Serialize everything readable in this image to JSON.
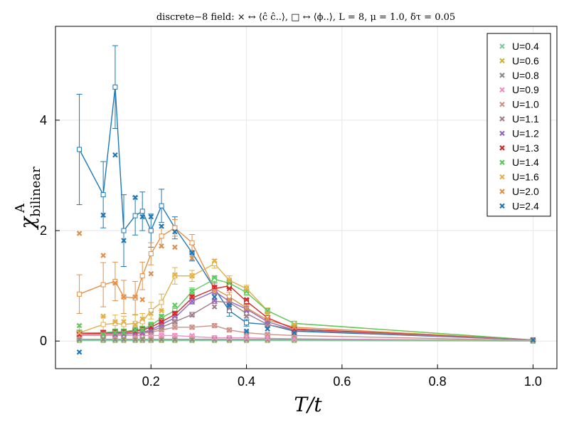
{
  "chart_data": {
    "type": "line",
    "title": "discrete−8  field:   × ↔ ⟨ĉ ĉ..⟩,      □ ↔ ⟨ϕ..⟩,   L = 8,   μ = 1.0,   δτ = 0.05",
    "xlabel": "T/t",
    "ylabel": "χ",
    "ylabel_sub": "bilinear",
    "ylabel_sup": "A",
    "xlim": [
      0.0,
      1.05
    ],
    "ylim": [
      -0.5,
      5.7
    ],
    "xticks": [
      0.2,
      0.4,
      0.6,
      0.8,
      1.0
    ],
    "xtick_labels": [
      "0.2",
      "0.4",
      "0.6",
      "0.8",
      "1.0"
    ],
    "yticks": [
      0,
      2,
      4
    ],
    "ytick_labels": [
      "0",
      "2",
      "4"
    ],
    "grid": true,
    "legend_position": "top-right",
    "series": [
      {
        "name": "U=0.4",
        "color": "#7fc9a0",
        "x": [
          0.05,
          0.1,
          0.125,
          0.143,
          0.167,
          0.182,
          0.2,
          0.222,
          0.25,
          0.286,
          0.333,
          0.364,
          0.4,
          0.444,
          0.5,
          1.0
        ],
        "y": [
          0.01,
          0.01,
          0.01,
          0.01,
          0.01,
          0.01,
          0.01,
          0.01,
          0.01,
          0.01,
          0.01,
          0.01,
          0.01,
          0.01,
          0.01,
          0.0
        ]
      },
      {
        "name": "U=0.6",
        "color": "#c9b53c",
        "x": [
          0.05,
          0.1,
          0.125,
          0.143,
          0.167,
          0.182,
          0.2,
          0.222,
          0.25,
          0.286,
          0.333,
          0.364,
          0.4,
          0.444,
          0.5,
          1.0
        ],
        "y": [
          0.02,
          0.02,
          0.02,
          0.02,
          0.02,
          0.02,
          0.02,
          0.02,
          0.02,
          0.02,
          0.02,
          0.02,
          0.02,
          0.02,
          0.02,
          0.0
        ]
      },
      {
        "name": "U=0.8",
        "color": "#8c8c8c",
        "x": [
          0.05,
          0.1,
          0.125,
          0.143,
          0.167,
          0.182,
          0.2,
          0.222,
          0.25,
          0.286,
          0.333,
          0.364,
          0.4,
          0.444,
          0.5,
          1.0
        ],
        "y": [
          0.03,
          0.03,
          0.03,
          0.03,
          0.03,
          0.03,
          0.03,
          0.03,
          0.03,
          0.03,
          0.03,
          0.03,
          0.03,
          0.03,
          0.03,
          0.0
        ]
      },
      {
        "name": "U=0.9",
        "color": "#f08fc4",
        "x": [
          0.05,
          0.1,
          0.125,
          0.143,
          0.167,
          0.182,
          0.2,
          0.222,
          0.25,
          0.286,
          0.333,
          0.364,
          0.4,
          0.444,
          0.5,
          1.0
        ],
        "y": [
          0.1,
          0.12,
          0.1,
          0.12,
          0.1,
          0.12,
          0.1,
          0.1,
          0.1,
          0.1,
          0.06,
          0.06,
          0.06,
          0.05,
          0.04,
          0.01
        ]
      },
      {
        "name": "U=1.0",
        "color": "#c9918a",
        "x": [
          0.05,
          0.1,
          0.125,
          0.143,
          0.167,
          0.182,
          0.2,
          0.222,
          0.25,
          0.286,
          0.333,
          0.364,
          0.4,
          0.444,
          0.5,
          1.0
        ],
        "y": [
          0.12,
          0.12,
          0.12,
          0.12,
          0.13,
          0.13,
          0.15,
          0.2,
          0.25,
          0.25,
          0.28,
          0.2,
          0.15,
          0.12,
          0.1,
          0.01
        ]
      },
      {
        "name": "U=1.1",
        "color": "#a07e8c",
        "x": [
          0.05,
          0.1,
          0.125,
          0.143,
          0.167,
          0.182,
          0.2,
          0.222,
          0.25,
          0.286,
          0.333,
          0.364,
          0.4,
          0.444,
          0.5,
          1.0
        ],
        "y": [
          0.12,
          0.12,
          0.12,
          0.12,
          0.14,
          0.15,
          0.18,
          0.25,
          0.35,
          0.47,
          0.62,
          0.6,
          0.45,
          0.3,
          0.2,
          0.02
        ]
      },
      {
        "name": "U=1.2",
        "color": "#9467bd",
        "x": [
          0.05,
          0.1,
          0.125,
          0.143,
          0.167,
          0.182,
          0.2,
          0.222,
          0.25,
          0.286,
          0.333,
          0.364,
          0.4,
          0.444,
          0.5,
          1.0
        ],
        "y": [
          0.12,
          0.12,
          0.12,
          0.13,
          0.15,
          0.15,
          0.2,
          0.3,
          0.45,
          0.72,
          0.73,
          0.7,
          0.55,
          0.35,
          0.2,
          0.02
        ]
      },
      {
        "name": "U=1.3",
        "color": "#d62728",
        "x": [
          0.05,
          0.1,
          0.125,
          0.143,
          0.167,
          0.182,
          0.2,
          0.222,
          0.25,
          0.286,
          0.333,
          0.364,
          0.4,
          0.444,
          0.5,
          1.0
        ],
        "y": [
          0.12,
          0.13,
          0.15,
          0.15,
          0.18,
          0.2,
          0.25,
          0.35,
          0.5,
          0.8,
          0.97,
          0.95,
          0.75,
          0.4,
          0.22,
          0.02
        ]
      },
      {
        "name": "U=1.4",
        "color": "#5cc95c",
        "x": [
          0.05,
          0.1,
          0.125,
          0.143,
          0.167,
          0.182,
          0.2,
          0.222,
          0.25,
          0.286,
          0.333,
          0.364,
          0.4,
          0.444,
          0.5,
          1.0
        ],
        "y": [
          0.28,
          0.12,
          0.15,
          0.15,
          0.2,
          0.2,
          0.3,
          0.45,
          0.65,
          0.9,
          1.15,
          1.05,
          0.9,
          0.55,
          0.3,
          0.02
        ]
      },
      {
        "name": "U=1.6",
        "color": "#e0b04a",
        "x": [
          0.05,
          0.1,
          0.125,
          0.143,
          0.167,
          0.182,
          0.2,
          0.222,
          0.25,
          0.286,
          0.333,
          0.364,
          0.4,
          0.444,
          0.5,
          1.0
        ],
        "y": [
          0.15,
          0.45,
          0.35,
          0.35,
          0.3,
          0.4,
          0.5,
          0.55,
          1.2,
          1.18,
          1.45,
          1.1,
          0.95,
          0.5,
          0.3,
          0.02
        ]
      },
      {
        "name": "U=2.0",
        "color": "#e0904a",
        "x": [
          0.05,
          0.1,
          0.125,
          0.143,
          0.167,
          0.182,
          0.2,
          0.222,
          0.25,
          0.286,
          0.333,
          0.364,
          0.4,
          0.444,
          0.5,
          1.0
        ],
        "y": [
          1.95,
          1.55,
          1.05,
          0.8,
          0.8,
          0.75,
          1.22,
          1.72,
          1.7,
          1.5,
          0.9,
          0.75,
          0.6,
          0.4,
          0.25,
          0.02
        ]
      },
      {
        "name": "U=2.4",
        "color": "#1f77b4",
        "x": [
          0.05,
          0.1,
          0.125,
          0.143,
          0.167,
          0.182,
          0.2,
          0.222,
          0.25,
          0.286,
          0.333,
          0.364,
          0.4,
          0.444,
          0.5,
          1.0
        ],
        "y": [
          -0.2,
          2.28,
          3.37,
          1.82,
          2.6,
          2.25,
          2.25,
          2.08,
          1.98,
          1.6,
          0.8,
          0.65,
          0.18,
          0.22,
          0.15,
          0.02
        ]
      }
    ],
    "field_lines": [
      {
        "name": "U=2.4",
        "color": "#1f77b4",
        "x": [
          0.05,
          0.1,
          0.125,
          0.143,
          0.167,
          0.182,
          0.2,
          0.222,
          0.25,
          0.286,
          0.333,
          0.364,
          0.4,
          0.444,
          0.5,
          1.0
        ],
        "y": [
          3.47,
          2.65,
          4.6,
          2.0,
          2.27,
          2.35,
          2.0,
          2.45,
          2.05,
          1.6,
          0.95,
          0.55,
          0.33,
          0.3,
          0.18,
          0.02
        ],
        "err": [
          1.0,
          0.6,
          0.75,
          0.65,
          0.35,
          0.35,
          0.3,
          0.3,
          0.2,
          0.15,
          0.1,
          0.1,
          0.06,
          0.05,
          0.03,
          0.01
        ]
      },
      {
        "name": "U=2.0",
        "color": "#e0904a",
        "x": [
          0.05,
          0.1,
          0.125,
          0.143,
          0.167,
          0.182,
          0.2,
          0.222,
          0.25,
          0.286,
          0.333,
          0.364,
          0.4,
          0.444,
          0.5,
          1.0
        ],
        "y": [
          0.85,
          1.02,
          1.08,
          0.8,
          0.78,
          1.18,
          1.58,
          1.9,
          2.05,
          1.78,
          0.95,
          0.8,
          0.6,
          0.38,
          0.25,
          0.02
        ],
        "err": [
          0.35,
          0.4,
          0.35,
          0.3,
          0.3,
          0.25,
          0.2,
          0.2,
          0.15,
          0.15,
          0.1,
          0.08,
          0.06,
          0.05,
          0.03,
          0.01
        ]
      },
      {
        "name": "U=1.6",
        "color": "#e0b04a",
        "x": [
          0.05,
          0.1,
          0.125,
          0.143,
          0.167,
          0.182,
          0.2,
          0.222,
          0.25,
          0.286,
          0.333,
          0.364,
          0.4,
          0.444,
          0.5,
          1.0
        ],
        "y": [
          0.15,
          0.3,
          0.32,
          0.3,
          0.32,
          0.35,
          0.55,
          0.7,
          1.18,
          1.18,
          1.4,
          1.1,
          0.95,
          0.55,
          0.32,
          0.02
        ],
        "err": [
          0.15,
          0.15,
          0.15,
          0.15,
          0.15,
          0.15,
          0.15,
          0.15,
          0.15,
          0.1,
          0.08,
          0.08,
          0.06,
          0.05,
          0.03,
          0.01
        ]
      },
      {
        "name": "U=1.4",
        "color": "#5cc95c",
        "x": [
          0.05,
          0.1,
          0.125,
          0.143,
          0.167,
          0.182,
          0.2,
          0.222,
          0.25,
          0.286,
          0.333,
          0.364,
          0.4,
          0.444,
          0.5,
          1.0
        ],
        "y": [
          0.15,
          0.15,
          0.17,
          0.17,
          0.2,
          0.22,
          0.28,
          0.42,
          0.55,
          0.9,
          1.12,
          1.05,
          0.88,
          0.55,
          0.32,
          0.02
        ],
        "err": [
          0.05,
          0.05,
          0.05,
          0.05,
          0.05,
          0.05,
          0.06,
          0.06,
          0.06,
          0.06,
          0.06,
          0.05,
          0.05,
          0.04,
          0.03,
          0.01
        ]
      },
      {
        "name": "U=1.3",
        "color": "#d62728",
        "x": [
          0.05,
          0.1,
          0.125,
          0.143,
          0.167,
          0.182,
          0.2,
          0.222,
          0.25,
          0.286,
          0.333,
          0.364,
          0.4,
          0.444,
          0.5,
          1.0
        ],
        "y": [
          0.13,
          0.14,
          0.15,
          0.15,
          0.18,
          0.2,
          0.25,
          0.35,
          0.48,
          0.78,
          0.95,
          1.0,
          0.72,
          0.42,
          0.22,
          0.02
        ],
        "err": [
          0.05,
          0.05,
          0.05,
          0.05,
          0.05,
          0.05,
          0.06,
          0.06,
          0.06,
          0.06,
          0.06,
          0.05,
          0.05,
          0.04,
          0.03,
          0.01
        ]
      },
      {
        "name": "U=1.2",
        "color": "#9467bd",
        "x": [
          0.05,
          0.1,
          0.125,
          0.143,
          0.167,
          0.182,
          0.2,
          0.222,
          0.25,
          0.286,
          0.333,
          0.364,
          0.4,
          0.444,
          0.5,
          1.0
        ],
        "y": [
          0.12,
          0.12,
          0.13,
          0.13,
          0.15,
          0.16,
          0.2,
          0.3,
          0.42,
          0.72,
          0.9,
          0.72,
          0.58,
          0.35,
          0.2,
          0.02
        ],
        "err": [
          0.05,
          0.05,
          0.05,
          0.05,
          0.05,
          0.05,
          0.05,
          0.05,
          0.05,
          0.05,
          0.05,
          0.05,
          0.05,
          0.04,
          0.03,
          0.01
        ]
      },
      {
        "name": "U=1.1",
        "color": "#a07e8c",
        "x": [
          0.05,
          0.1,
          0.125,
          0.143,
          0.167,
          0.182,
          0.2,
          0.222,
          0.25,
          0.286,
          0.333,
          0.364,
          0.4,
          0.444,
          0.5,
          1.0
        ],
        "y": [
          0.12,
          0.12,
          0.12,
          0.12,
          0.14,
          0.15,
          0.18,
          0.25,
          0.35,
          0.48,
          0.72,
          0.7,
          0.5,
          0.3,
          0.2,
          0.02
        ],
        "err": [
          0.04,
          0.04,
          0.04,
          0.04,
          0.04,
          0.04,
          0.04,
          0.04,
          0.04,
          0.04,
          0.04,
          0.04,
          0.04,
          0.03,
          0.02,
          0.01
        ]
      },
      {
        "name": "U=1.0",
        "color": "#c9918a",
        "x": [
          0.05,
          0.1,
          0.125,
          0.143,
          0.167,
          0.182,
          0.2,
          0.222,
          0.25,
          0.286,
          0.333,
          0.364,
          0.4,
          0.444,
          0.5,
          1.0
        ],
        "y": [
          0.12,
          0.12,
          0.12,
          0.12,
          0.13,
          0.14,
          0.16,
          0.2,
          0.25,
          0.25,
          0.28,
          0.2,
          0.15,
          0.12,
          0.1,
          0.01
        ],
        "err": [
          0.03,
          0.03,
          0.03,
          0.03,
          0.03,
          0.03,
          0.03,
          0.03,
          0.03,
          0.03,
          0.03,
          0.03,
          0.03,
          0.02,
          0.02,
          0.01
        ]
      },
      {
        "name": "U=0.9",
        "color": "#f08fc4",
        "x": [
          0.05,
          0.1,
          0.125,
          0.143,
          0.167,
          0.182,
          0.2,
          0.222,
          0.25,
          0.286,
          0.333,
          0.364,
          0.4,
          0.444,
          0.5,
          1.0
        ],
        "y": [
          0.1,
          0.1,
          0.1,
          0.1,
          0.1,
          0.1,
          0.1,
          0.1,
          0.1,
          0.08,
          0.06,
          0.06,
          0.06,
          0.05,
          0.04,
          0.01
        ],
        "err": [
          0.02,
          0.02,
          0.02,
          0.02,
          0.02,
          0.02,
          0.02,
          0.02,
          0.02,
          0.02,
          0.02,
          0.02,
          0.02,
          0.02,
          0.02,
          0.01
        ]
      },
      {
        "name": "U=0.8",
        "color": "#8c8c8c",
        "x": [
          0.05,
          0.1,
          0.125,
          0.143,
          0.167,
          0.182,
          0.2,
          0.222,
          0.25,
          0.286,
          0.333,
          0.364,
          0.4,
          0.444,
          0.5,
          1.0
        ],
        "y": [
          0.03,
          0.03,
          0.03,
          0.03,
          0.03,
          0.03,
          0.03,
          0.03,
          0.03,
          0.03,
          0.03,
          0.03,
          0.03,
          0.03,
          0.03,
          0.0
        ],
        "err": [
          0.01,
          0.01,
          0.01,
          0.01,
          0.01,
          0.01,
          0.01,
          0.01,
          0.01,
          0.01,
          0.01,
          0.01,
          0.01,
          0.01,
          0.01,
          0.01
        ]
      },
      {
        "name": "U=0.6",
        "color": "#c9b53c",
        "x": [
          0.05,
          0.1,
          0.125,
          0.143,
          0.167,
          0.182,
          0.2,
          0.222,
          0.25,
          0.286,
          0.333,
          0.364,
          0.4,
          0.444,
          0.5,
          1.0
        ],
        "y": [
          0.02,
          0.02,
          0.02,
          0.02,
          0.02,
          0.02,
          0.02,
          0.02,
          0.02,
          0.02,
          0.02,
          0.02,
          0.02,
          0.02,
          0.02,
          0.0
        ],
        "err": [
          0.01,
          0.01,
          0.01,
          0.01,
          0.01,
          0.01,
          0.01,
          0.01,
          0.01,
          0.01,
          0.01,
          0.01,
          0.01,
          0.01,
          0.01,
          0.01
        ]
      },
      {
        "name": "U=0.4",
        "color": "#7fc9a0",
        "x": [
          0.05,
          0.1,
          0.125,
          0.143,
          0.167,
          0.182,
          0.2,
          0.222,
          0.25,
          0.286,
          0.333,
          0.364,
          0.4,
          0.444,
          0.5,
          1.0
        ],
        "y": [
          0.01,
          0.01,
          0.01,
          0.01,
          0.01,
          0.01,
          0.01,
          0.01,
          0.01,
          0.01,
          0.01,
          0.01,
          0.01,
          0.01,
          0.01,
          0.0
        ],
        "err": [
          0.01,
          0.01,
          0.01,
          0.01,
          0.01,
          0.01,
          0.01,
          0.01,
          0.01,
          0.01,
          0.01,
          0.01,
          0.01,
          0.01,
          0.01,
          0.01
        ]
      }
    ]
  }
}
